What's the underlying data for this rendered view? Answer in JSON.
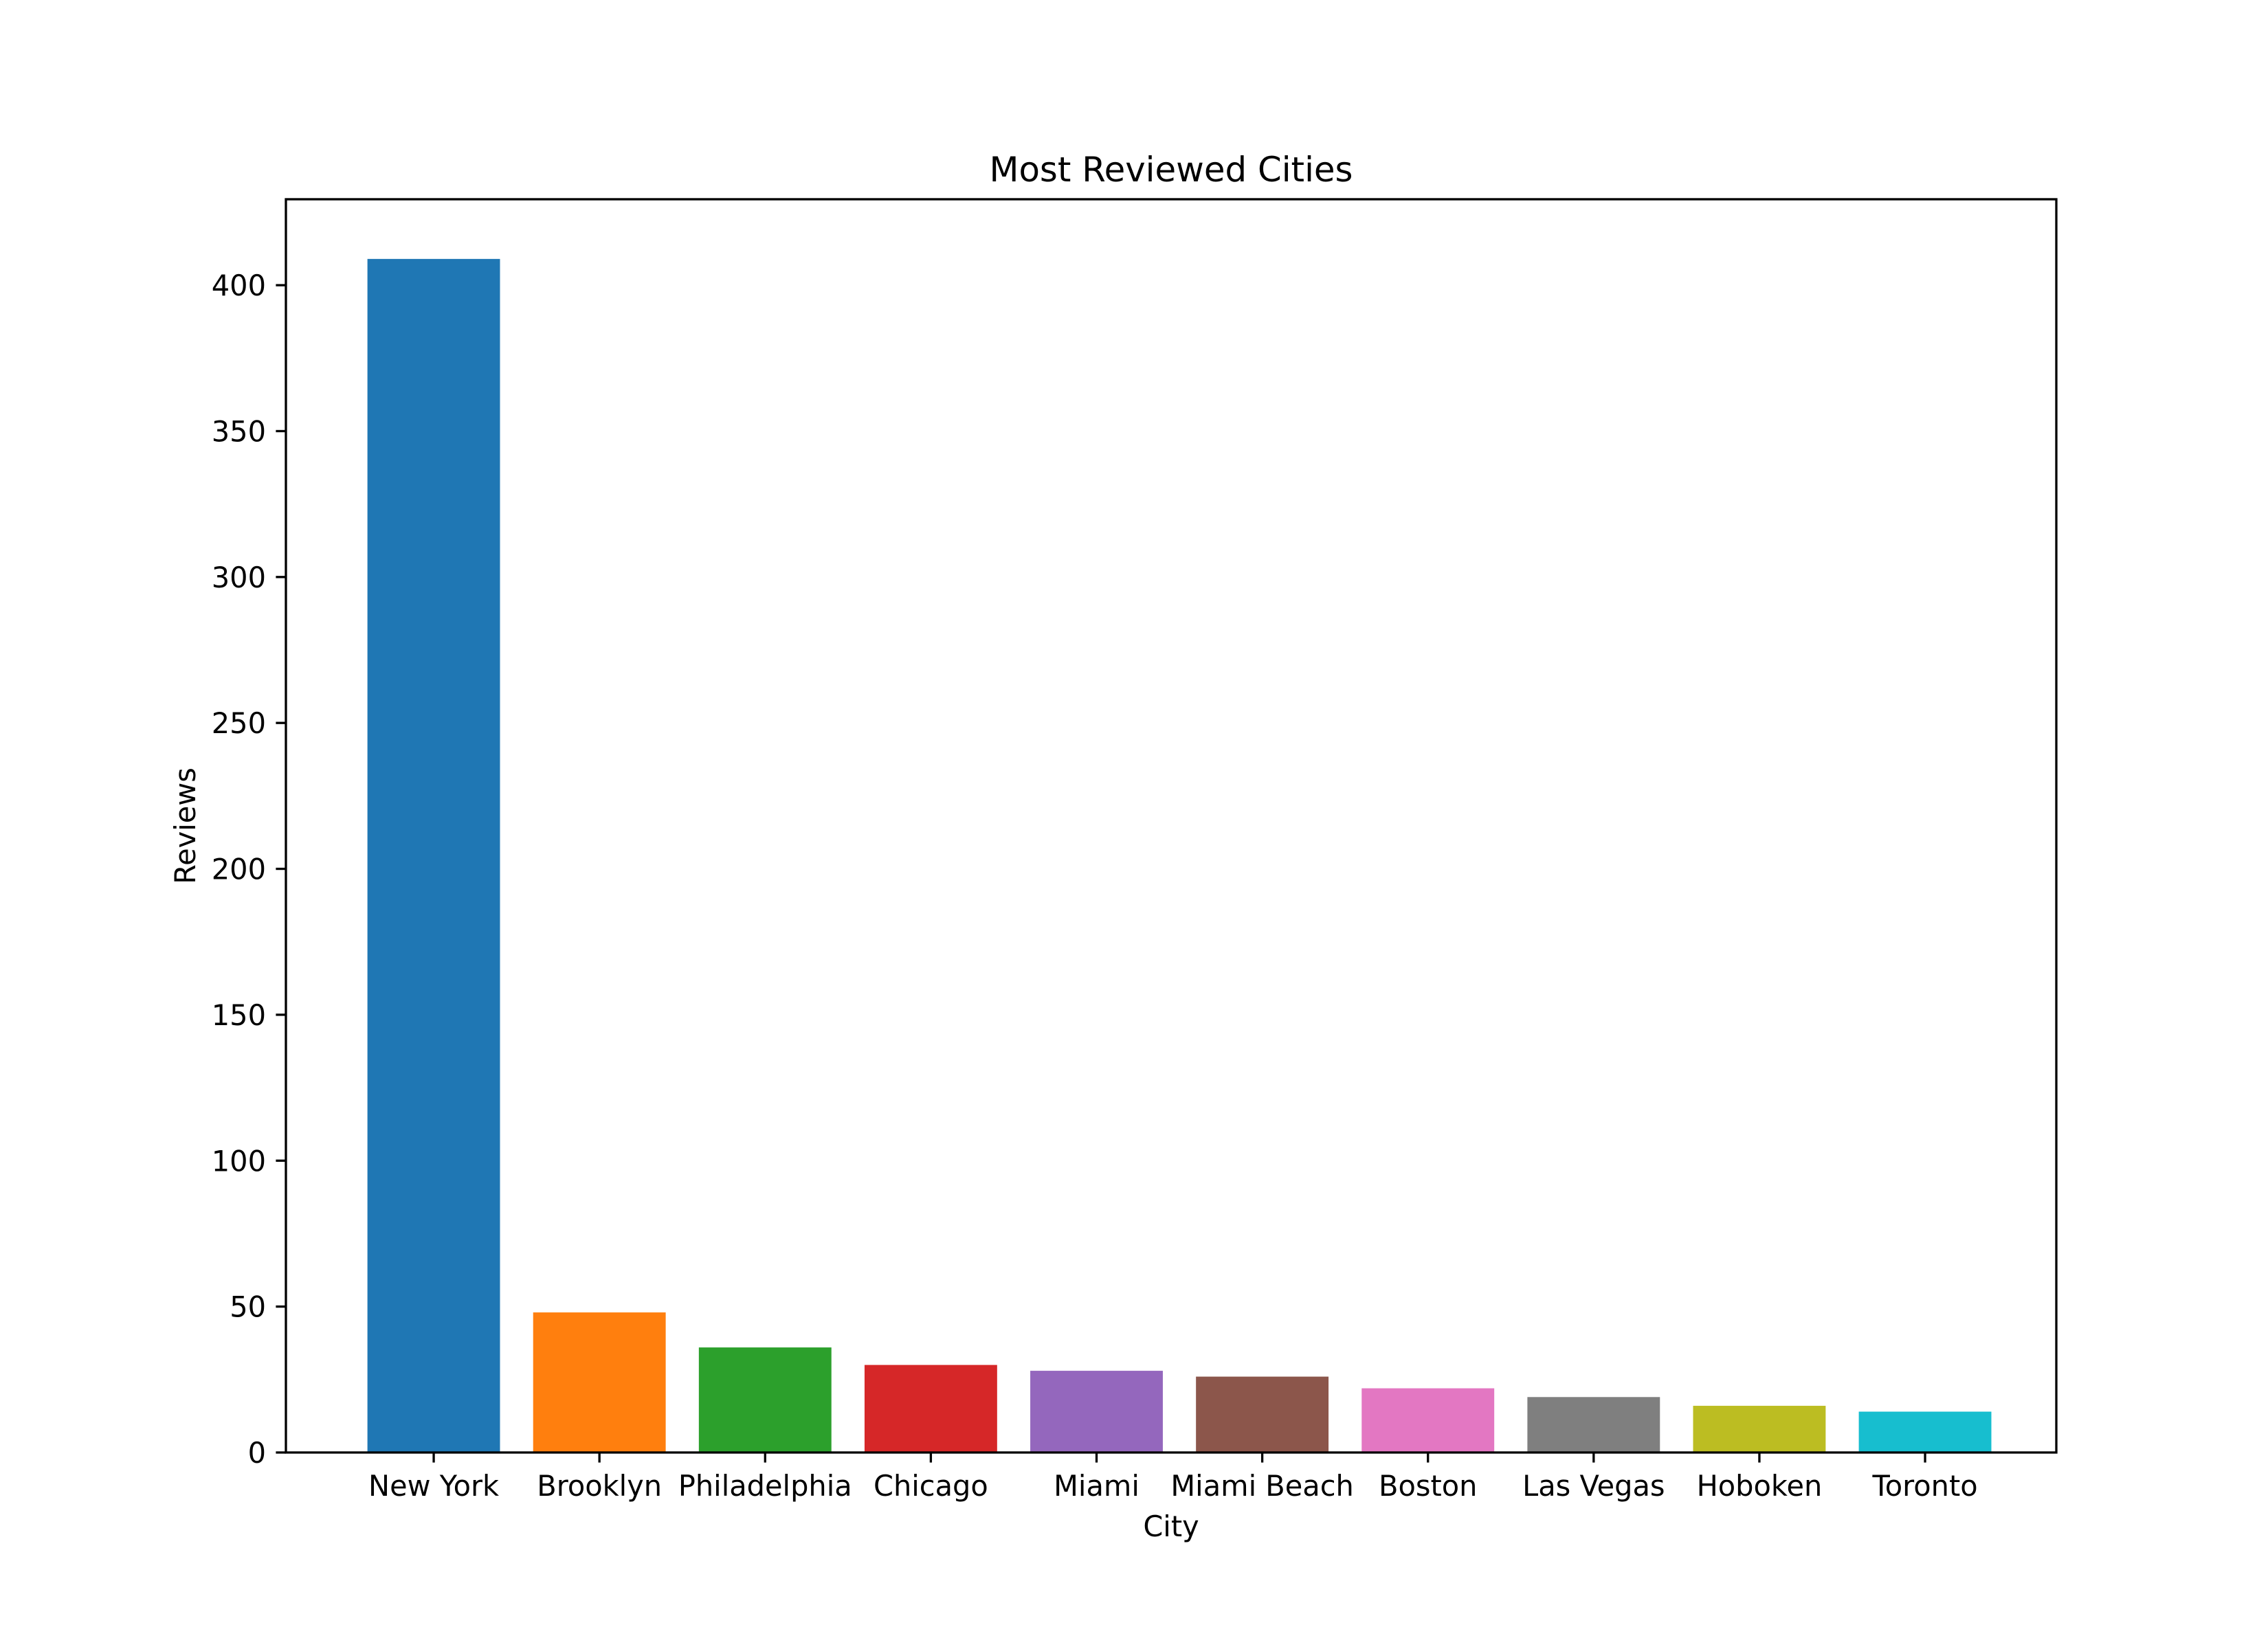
{
  "chart_data": {
    "type": "bar",
    "title": "Most Reviewed Cities",
    "xlabel": "City",
    "ylabel": "Reviews",
    "categories": [
      "New York",
      "Brooklyn",
      "Philadelphia",
      "Chicago",
      "Miami",
      "Miami Beach",
      "Boston",
      "Las Vegas",
      "Hoboken",
      "Toronto"
    ],
    "values": [
      409,
      48,
      36,
      30,
      28,
      26,
      22,
      19,
      16,
      14
    ],
    "colors": [
      "#1f77b4",
      "#ff7f0e",
      "#2ca02c",
      "#d62728",
      "#9467bd",
      "#8c564b",
      "#e377c2",
      "#7f7f7f",
      "#bcbd22",
      "#17becf"
    ],
    "ylim": [
      0,
      429.45
    ],
    "yticks": [
      0,
      50,
      100,
      150,
      200,
      250,
      300,
      350,
      400
    ],
    "grid": false,
    "legend": false
  }
}
